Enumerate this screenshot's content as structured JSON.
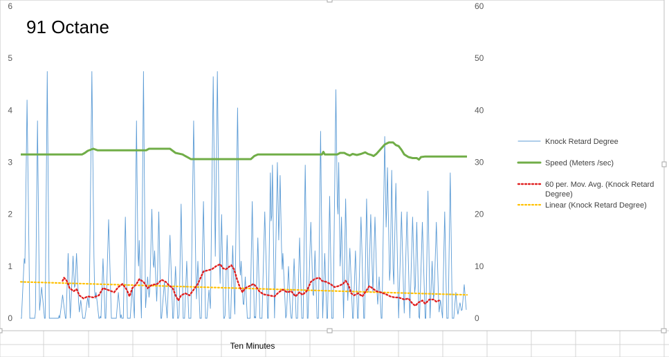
{
  "chart_data": {
    "type": "line",
    "title": "91 Octane",
    "xlabel": "Ten Minutes",
    "n_samples": 640,
    "y_left": {
      "ticks": [
        "0",
        "1",
        "2",
        "3",
        "4",
        "5",
        "6"
      ],
      "lim": [
        0,
        6
      ]
    },
    "y_right": {
      "ticks": [
        "0",
        "10",
        "20",
        "30",
        "40",
        "50",
        "60"
      ],
      "lim": [
        0,
        60
      ]
    },
    "grid": false,
    "legend_position": "right",
    "colors": {
      "knock": "#5B9BD5",
      "speed": "#70AD47",
      "moving_avg": "#E02020",
      "linear": "#FFC000"
    },
    "series": [
      {
        "name": "Knock Retard Degree",
        "axis": "left",
        "style": "thin-line",
        "spikes": [
          {
            "x": 5,
            "y": 1.15
          },
          {
            "x": 9,
            "y": 4.2
          },
          {
            "x": 24,
            "y": 3.8
          },
          {
            "x": 30,
            "y": 0.6
          },
          {
            "x": 38,
            "y": 4.75
          },
          {
            "x": 60,
            "y": 0.45
          },
          {
            "x": 68,
            "y": 1.25
          },
          {
            "x": 75,
            "y": 1.2
          },
          {
            "x": 80,
            "y": 1.25
          },
          {
            "x": 86,
            "y": 0.35
          },
          {
            "x": 96,
            "y": 0.4
          },
          {
            "x": 102,
            "y": 4.75
          },
          {
            "x": 104,
            "y": 1.55
          },
          {
            "x": 108,
            "y": 0.5
          },
          {
            "x": 118,
            "y": 1.15
          },
          {
            "x": 126,
            "y": 1.9
          },
          {
            "x": 140,
            "y": 0.5
          },
          {
            "x": 150,
            "y": 1.95
          },
          {
            "x": 160,
            "y": 0.6
          },
          {
            "x": 166,
            "y": 3.8
          },
          {
            "x": 170,
            "y": 1.5
          },
          {
            "x": 176,
            "y": 4.75
          },
          {
            "x": 182,
            "y": 0.8
          },
          {
            "x": 188,
            "y": 2.1
          },
          {
            "x": 192,
            "y": 1.3
          },
          {
            "x": 198,
            "y": 2.05
          },
          {
            "x": 206,
            "y": 0.7
          },
          {
            "x": 214,
            "y": 1.6
          },
          {
            "x": 222,
            "y": 1.0
          },
          {
            "x": 230,
            "y": 2.2
          },
          {
            "x": 238,
            "y": 1.1
          },
          {
            "x": 248,
            "y": 3.8
          },
          {
            "x": 254,
            "y": 1.1
          },
          {
            "x": 262,
            "y": 2.25
          },
          {
            "x": 270,
            "y": 0.55
          },
          {
            "x": 276,
            "y": 4.65
          },
          {
            "x": 282,
            "y": 4.75
          },
          {
            "x": 288,
            "y": 2.0
          },
          {
            "x": 296,
            "y": 1.6
          },
          {
            "x": 304,
            "y": 1.4
          },
          {
            "x": 311,
            "y": 4.05
          },
          {
            "x": 316,
            "y": 1.1
          },
          {
            "x": 322,
            "y": 0.8
          },
          {
            "x": 332,
            "y": 2.25
          },
          {
            "x": 340,
            "y": 1.55
          },
          {
            "x": 350,
            "y": 2.05
          },
          {
            "x": 358,
            "y": 2.8
          },
          {
            "x": 361,
            "y": 2.95
          },
          {
            "x": 368,
            "y": 3.0
          },
          {
            "x": 372,
            "y": 2.75
          },
          {
            "x": 376,
            "y": 1.25
          },
          {
            "x": 384,
            "y": 1.0
          },
          {
            "x": 392,
            "y": 1.15
          },
          {
            "x": 400,
            "y": 1.55
          },
          {
            "x": 408,
            "y": 2.95
          },
          {
            "x": 416,
            "y": 1.85
          },
          {
            "x": 422,
            "y": 1.3
          },
          {
            "x": 430,
            "y": 3.6
          },
          {
            "x": 436,
            "y": 1.25
          },
          {
            "x": 443,
            "y": 2.35
          },
          {
            "x": 452,
            "y": 4.4
          },
          {
            "x": 456,
            "y": 3.0
          },
          {
            "x": 460,
            "y": 1.95
          },
          {
            "x": 466,
            "y": 2.3
          },
          {
            "x": 472,
            "y": 1.35
          },
          {
            "x": 480,
            "y": 1.3
          },
          {
            "x": 488,
            "y": 1.95
          },
          {
            "x": 496,
            "y": 2.3
          },
          {
            "x": 502,
            "y": 2.0
          },
          {
            "x": 508,
            "y": 1.95
          },
          {
            "x": 514,
            "y": 0.8
          },
          {
            "x": 522,
            "y": 3.5
          },
          {
            "x": 526,
            "y": 2.9
          },
          {
            "x": 532,
            "y": 2.85
          },
          {
            "x": 538,
            "y": 2.6
          },
          {
            "x": 546,
            "y": 2.05
          },
          {
            "x": 554,
            "y": 2.05
          },
          {
            "x": 562,
            "y": 1.95
          },
          {
            "x": 568,
            "y": 1.85
          },
          {
            "x": 576,
            "y": 1.85
          },
          {
            "x": 584,
            "y": 2.45
          },
          {
            "x": 590,
            "y": 1.1
          },
          {
            "x": 596,
            "y": 1.85
          },
          {
            "x": 602,
            "y": 0.35
          },
          {
            "x": 608,
            "y": 2.05
          },
          {
            "x": 616,
            "y": 2.8
          },
          {
            "x": 624,
            "y": 0.5
          },
          {
            "x": 630,
            "y": 0.3
          },
          {
            "x": 636,
            "y": 0.65
          }
        ]
      },
      {
        "name": "Speed (Meters /sec)",
        "axis": "right",
        "style": "thick-line",
        "points": [
          [
            0,
            31.5
          ],
          [
            88,
            31.5
          ],
          [
            92,
            31.8
          ],
          [
            96,
            32.2
          ],
          [
            104,
            32.6
          ],
          [
            110,
            32.3
          ],
          [
            180,
            32.3
          ],
          [
            184,
            32.6
          ],
          [
            214,
            32.6
          ],
          [
            218,
            32.2
          ],
          [
            222,
            31.8
          ],
          [
            232,
            31.5
          ],
          [
            236,
            31.2
          ],
          [
            240,
            30.9
          ],
          [
            244,
            30.6
          ],
          [
            330,
            30.6
          ],
          [
            335,
            31.2
          ],
          [
            340,
            31.5
          ],
          [
            432,
            31.5
          ],
          [
            434,
            32.0
          ],
          [
            436,
            31.5
          ],
          [
            454,
            31.5
          ],
          [
            458,
            31.8
          ],
          [
            464,
            31.8
          ],
          [
            468,
            31.5
          ],
          [
            472,
            31.3
          ],
          [
            476,
            31.6
          ],
          [
            482,
            31.4
          ],
          [
            488,
            31.6
          ],
          [
            494,
            31.9
          ],
          [
            498,
            31.6
          ],
          [
            503,
            31.4
          ],
          [
            506,
            31.2
          ],
          [
            510,
            31.6
          ],
          [
            516,
            32.5
          ],
          [
            522,
            33.4
          ],
          [
            528,
            33.8
          ],
          [
            534,
            33.8
          ],
          [
            538,
            33.3
          ],
          [
            542,
            33.1
          ],
          [
            546,
            32.4
          ],
          [
            550,
            31.5
          ],
          [
            556,
            31.0
          ],
          [
            562,
            30.8
          ],
          [
            568,
            30.8
          ],
          [
            571,
            30.5
          ],
          [
            574,
            31.0
          ],
          [
            580,
            31.1
          ],
          [
            640,
            31.1
          ]
        ]
      },
      {
        "name": "60 per. Mov. Avg. (Knock Retard Degree)",
        "axis": "left",
        "style": "dotted",
        "points": [
          [
            60,
            0.72
          ],
          [
            62,
            0.78
          ],
          [
            66,
            0.72
          ],
          [
            68,
            0.66
          ],
          [
            70,
            0.58
          ],
          [
            76,
            0.52
          ],
          [
            80,
            0.56
          ],
          [
            84,
            0.44
          ],
          [
            90,
            0.38
          ],
          [
            96,
            0.42
          ],
          [
            104,
            0.4
          ],
          [
            112,
            0.44
          ],
          [
            118,
            0.58
          ],
          [
            126,
            0.54
          ],
          [
            134,
            0.5
          ],
          [
            140,
            0.6
          ],
          [
            146,
            0.66
          ],
          [
            152,
            0.55
          ],
          [
            156,
            0.42
          ],
          [
            160,
            0.58
          ],
          [
            166,
            0.66
          ],
          [
            170,
            0.75
          ],
          [
            176,
            0.7
          ],
          [
            182,
            0.58
          ],
          [
            188,
            0.64
          ],
          [
            196,
            0.66
          ],
          [
            202,
            0.74
          ],
          [
            208,
            0.7
          ],
          [
            212,
            0.64
          ],
          [
            218,
            0.58
          ],
          [
            222,
            0.44
          ],
          [
            226,
            0.34
          ],
          [
            230,
            0.44
          ],
          [
            236,
            0.48
          ],
          [
            242,
            0.44
          ],
          [
            248,
            0.55
          ],
          [
            254,
            0.66
          ],
          [
            258,
            0.78
          ],
          [
            262,
            0.9
          ],
          [
            268,
            0.92
          ],
          [
            274,
            0.94
          ],
          [
            280,
            1.0
          ],
          [
            286,
            1.04
          ],
          [
            290,
            0.96
          ],
          [
            294,
            0.94
          ],
          [
            298,
            0.98
          ],
          [
            302,
            1.02
          ],
          [
            306,
            0.94
          ],
          [
            310,
            0.76
          ],
          [
            314,
            0.6
          ],
          [
            318,
            0.5
          ],
          [
            322,
            0.58
          ],
          [
            328,
            0.62
          ],
          [
            334,
            0.66
          ],
          [
            338,
            0.6
          ],
          [
            342,
            0.52
          ],
          [
            348,
            0.46
          ],
          [
            356,
            0.44
          ],
          [
            364,
            0.42
          ],
          [
            370,
            0.5
          ],
          [
            376,
            0.55
          ],
          [
            382,
            0.5
          ],
          [
            388,
            0.52
          ],
          [
            394,
            0.42
          ],
          [
            400,
            0.5
          ],
          [
            404,
            0.45
          ],
          [
            410,
            0.52
          ],
          [
            416,
            0.7
          ],
          [
            422,
            0.76
          ],
          [
            428,
            0.78
          ],
          [
            432,
            0.72
          ],
          [
            438,
            0.7
          ],
          [
            444,
            0.66
          ],
          [
            450,
            0.6
          ],
          [
            456,
            0.62
          ],
          [
            462,
            0.66
          ],
          [
            466,
            0.72
          ],
          [
            470,
            0.64
          ],
          [
            474,
            0.48
          ],
          [
            478,
            0.44
          ],
          [
            484,
            0.48
          ],
          [
            490,
            0.42
          ],
          [
            494,
            0.5
          ],
          [
            500,
            0.62
          ],
          [
            506,
            0.56
          ],
          [
            510,
            0.52
          ],
          [
            516,
            0.5
          ],
          [
            524,
            0.46
          ],
          [
            530,
            0.42
          ],
          [
            536,
            0.4
          ],
          [
            542,
            0.4
          ],
          [
            550,
            0.36
          ],
          [
            556,
            0.38
          ],
          [
            562,
            0.28
          ],
          [
            566,
            0.24
          ],
          [
            570,
            0.3
          ],
          [
            576,
            0.34
          ],
          [
            580,
            0.28
          ],
          [
            586,
            0.36
          ],
          [
            592,
            0.36
          ],
          [
            596,
            0.32
          ],
          [
            600,
            0.34
          ]
        ]
      },
      {
        "name": "Linear (Knock Retard Degree)",
        "axis": "left",
        "style": "dotted",
        "points": [
          [
            0,
            0.7
          ],
          [
            640,
            0.45
          ]
        ]
      }
    ]
  }
}
